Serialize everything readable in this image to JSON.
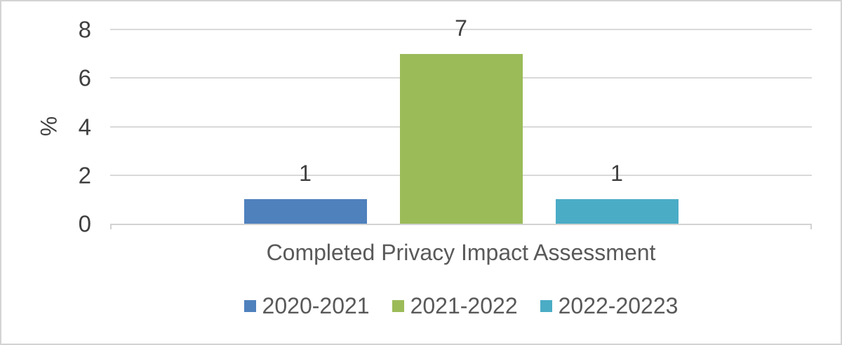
{
  "chart_data": {
    "type": "bar",
    "title": "",
    "xlabel": "Completed Privacy Impact Assessment",
    "ylabel": "%",
    "ylim": [
      0,
      8
    ],
    "yticks": [
      0,
      2,
      4,
      6,
      8
    ],
    "grid": true,
    "legend_position": "bottom",
    "categories": [
      "Completed Privacy Impact Assessment"
    ],
    "series": [
      {
        "name": "2020-2021",
        "values": [
          1
        ],
        "color": "#4F81BD"
      },
      {
        "name": "2021-2022",
        "values": [
          7
        ],
        "color": "#9BBB59"
      },
      {
        "name": "2022-20223",
        "values": [
          1
        ],
        "color": "#4BACC6"
      }
    ],
    "data_labels": [
      "1",
      "7",
      "1"
    ]
  },
  "style": {
    "gridline_color": "#D9D9D9",
    "axis_line_color": "#D2D2D2",
    "tick_text_color": "#404040",
    "label_text_color": "#595959",
    "frame_border_color": "#D3D3D3"
  }
}
